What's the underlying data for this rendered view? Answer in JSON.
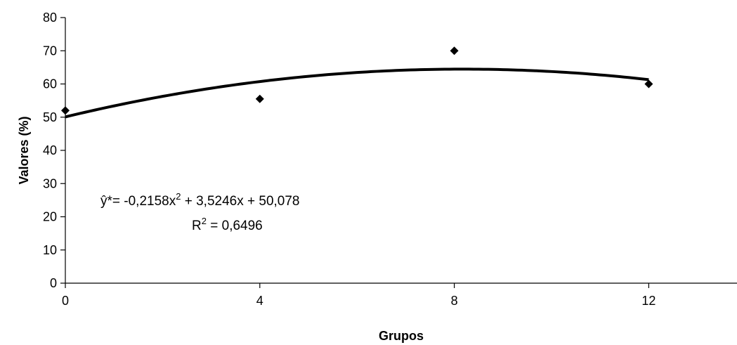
{
  "chart_data": {
    "type": "scatter",
    "xlabel": "Grupos",
    "ylabel": "Valores (%)",
    "xlim": [
      0,
      14
    ],
    "ylim": [
      0,
      80
    ],
    "x_ticks": [
      "0",
      "4",
      "8",
      "12"
    ],
    "y_ticks": [
      "0",
      "10",
      "20",
      "30",
      "40",
      "50",
      "60",
      "70",
      "80"
    ],
    "grid": false,
    "series": [
      {
        "kind": "points",
        "x": [
          0,
          4,
          8,
          12
        ],
        "y": [
          52,
          55.5,
          70,
          60
        ]
      },
      {
        "kind": "trendline",
        "fit": "polynomial-2",
        "coefficients": [
          -0.2158,
          3.5246,
          50.078
        ],
        "x_range": [
          0,
          12
        ]
      }
    ],
    "annotations": {
      "equation_prefix": "ŷ*= -0,2158x",
      "equation_exp": "2",
      "equation_suffix": " + 3,5246x + 50,078",
      "r2_prefix": "R",
      "r2_exp": "2",
      "r2_suffix": " = 0,6496"
    }
  }
}
